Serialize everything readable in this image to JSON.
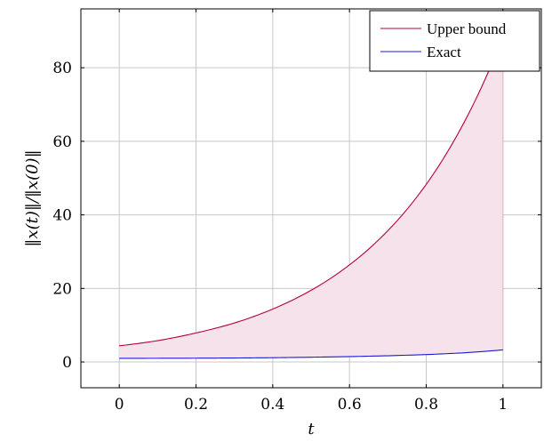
{
  "chart_data": {
    "type": "line",
    "xlabel": "t",
    "ylabel": "‖x(t)‖/‖x(0)‖",
    "xlim": [
      -0.1,
      1.1
    ],
    "ylim": [
      -7,
      96
    ],
    "x_ticks": [
      0,
      0.2,
      0.4,
      0.6,
      0.8,
      1
    ],
    "x_tick_labels": [
      "0",
      "0.2",
      "0.4",
      "0.6",
      "0.8",
      "1"
    ],
    "y_ticks": [
      0,
      20,
      40,
      60,
      80
    ],
    "y_tick_labels": [
      "0",
      "20",
      "40",
      "60",
      "80"
    ],
    "grid": true,
    "legend_position": "top-right",
    "shaded_region": {
      "between": [
        "Upper bound",
        "Exact"
      ],
      "color": "#f6e2ea"
    },
    "series": [
      {
        "name": "Upper bound",
        "color": "#b5003a",
        "x": [
          0,
          0.1,
          0.2,
          0.3,
          0.4,
          0.5,
          0.6,
          0.7,
          0.8,
          0.9,
          1.0
        ],
        "y": [
          4.4,
          5.8,
          7.9,
          10.6,
          14.4,
          19.5,
          26.4,
          35.7,
          48.3,
          65.4,
          88.5
        ]
      },
      {
        "name": "Exact",
        "color": "#1a1adb",
        "x": [
          0,
          0.1,
          0.2,
          0.3,
          0.4,
          0.5,
          0.6,
          0.7,
          0.8,
          0.9,
          1.0
        ],
        "y": [
          1.0,
          1.01,
          1.04,
          1.09,
          1.17,
          1.3,
          1.47,
          1.7,
          2.02,
          2.5,
          3.3
        ]
      }
    ]
  }
}
